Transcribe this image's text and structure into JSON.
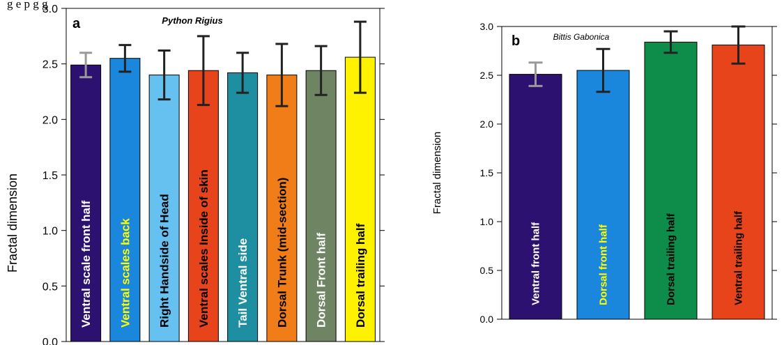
{
  "caption_fragment": "g     e     p     g     g",
  "chart_data": [
    {
      "type": "bar",
      "panel_label": "a",
      "title": "Python Rigius",
      "xlabel": "",
      "ylabel": "Fractal dimension",
      "ylim": [
        0,
        3
      ],
      "yticks": [
        "0.0",
        "0.5",
        "1.0",
        "1.5",
        "2.0",
        "2.5",
        "3.0"
      ],
      "categories": [
        "Ventral scale front half",
        "Ventral scales back",
        "Right Handside of  Head",
        "Ventral scales Inside of skin",
        "Tail Ventral side",
        "Dorsal Trunk (mid-section)",
        "Dorsal Front half",
        "Dorsal trailing half"
      ],
      "values": [
        2.49,
        2.55,
        2.4,
        2.44,
        2.42,
        2.4,
        2.44,
        2.56
      ],
      "errors": [
        0.11,
        0.12,
        0.22,
        0.31,
        0.18,
        0.28,
        0.22,
        0.32
      ],
      "colors": [
        "#2d1170",
        "#1a86dc",
        "#66c1f1",
        "#e8441c",
        "#1e8fa0",
        "#f07d18",
        "#6f8462",
        "#fff200"
      ],
      "label_colors": [
        "#ffffff",
        "#ffff00",
        "#000000",
        "#000000",
        "#ffffff",
        "#000000",
        "#ffffff",
        "#000000"
      ],
      "error_colors": [
        "#999999",
        "#222222",
        "#222222",
        "#222222",
        "#222222",
        "#222222",
        "#222222",
        "#222222"
      ],
      "label_bold": [
        true,
        true,
        true,
        false,
        true,
        true,
        true,
        true
      ],
      "grid": false
    },
    {
      "type": "bar",
      "panel_label": "b",
      "title": "Bittis Gabonica",
      "xlabel": "",
      "ylabel": "Fractal dimension",
      "ylim": [
        0,
        3
      ],
      "yticks": [
        "0.0",
        "0.5",
        "1.0",
        "1.5",
        "2.0",
        "2.5",
        "3.0"
      ],
      "categories": [
        "Ventral front half",
        "Dorsal front half",
        "Dorsal trailing half",
        "Ventral trailing half"
      ],
      "values": [
        2.51,
        2.55,
        2.84,
        2.81
      ],
      "errors": [
        0.12,
        0.22,
        0.11,
        0.19
      ],
      "colors": [
        "#2d1170",
        "#1a86dc",
        "#0e8c4a",
        "#e8441c"
      ],
      "label_colors": [
        "#ffffff",
        "#ffff00",
        "#000000",
        "#000000"
      ],
      "error_colors": [
        "#999999",
        "#222222",
        "#222222",
        "#222222"
      ],
      "label_bold": [
        true,
        true,
        true,
        true
      ],
      "grid": false
    }
  ]
}
